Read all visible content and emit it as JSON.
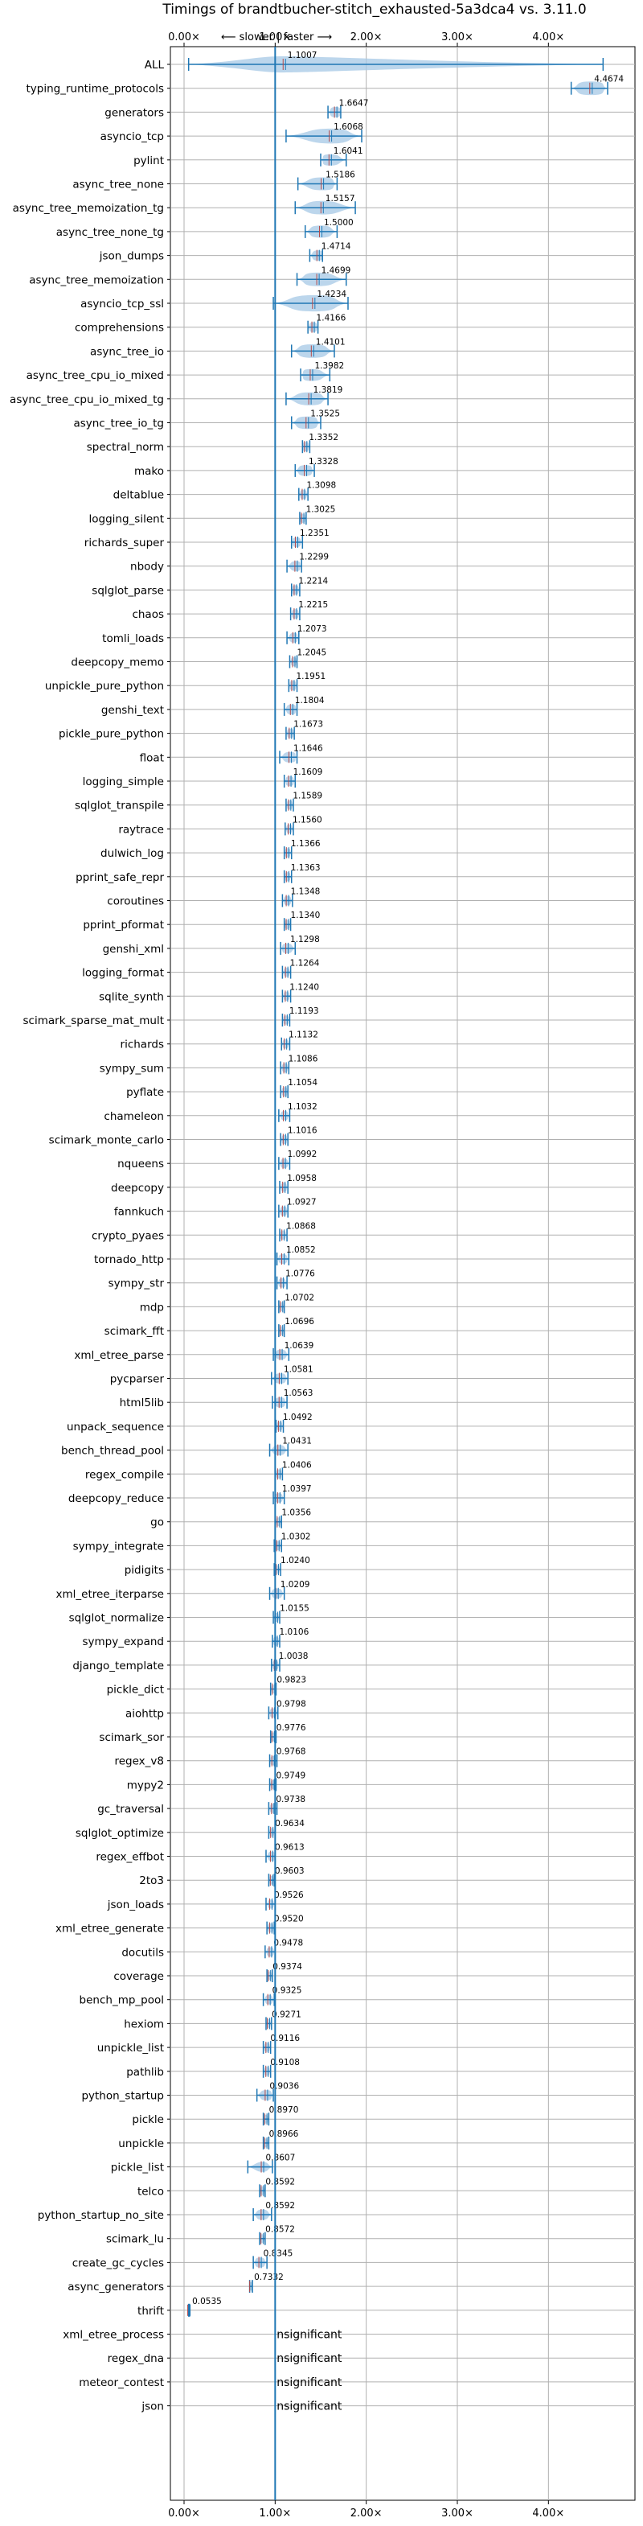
{
  "chart_data": {
    "type": "violin",
    "title": "Timings of brandtbucher-stitch_exhausted-5a3dca4 vs. 3.11.0",
    "subtitle": "⟵ slower | faster ⟶",
    "xlabel": "",
    "ylabel": "",
    "xlim": [
      -0.15,
      4.95
    ],
    "x_ticks": [
      0,
      1,
      2,
      3,
      4
    ],
    "x_tick_labels": [
      "0.00×",
      "1.00×",
      "2.00×",
      "3.00×",
      "4.00×"
    ],
    "reference_line": 1.0,
    "grid": true,
    "colors": {
      "violin": "#a6c8e6",
      "whisker": "#1f77b4",
      "median": "#1f77b4",
      "mean": "#b34a4a",
      "grid": "#b0b0b0"
    },
    "insignificant_label": "insignificant",
    "benchmarks": [
      {
        "name": "ALL",
        "value": 1.1007,
        "label": "1.1007",
        "lo": 0.05,
        "hi": 4.6,
        "spread": 0.3
      },
      {
        "name": "typing_runtime_protocols",
        "value": 4.4674,
        "label": "4.4674",
        "lo": 4.25,
        "hi": 4.65,
        "spread": 0.2
      },
      {
        "name": "generators",
        "value": 1.6647,
        "label": "1.6647",
        "lo": 1.58,
        "hi": 1.72,
        "spread": 0.08
      },
      {
        "name": "asyncio_tcp",
        "value": 1.6068,
        "label": "1.6068",
        "lo": 1.12,
        "hi": 1.95,
        "spread": 0.25
      },
      {
        "name": "pylint",
        "value": 1.6041,
        "label": "1.6041",
        "lo": 1.5,
        "hi": 1.78,
        "spread": 0.12
      },
      {
        "name": "async_tree_none",
        "value": 1.5186,
        "label": "1.5186",
        "lo": 1.25,
        "hi": 1.68,
        "spread": 0.18
      },
      {
        "name": "async_tree_memoization_tg",
        "value": 1.5157,
        "label": "1.5157",
        "lo": 1.22,
        "hi": 1.88,
        "spread": 0.2
      },
      {
        "name": "async_tree_none_tg",
        "value": 1.5,
        "label": "1.5000",
        "lo": 1.33,
        "hi": 1.68,
        "spread": 0.15
      },
      {
        "name": "json_dumps",
        "value": 1.4714,
        "label": "1.4714",
        "lo": 1.38,
        "hi": 1.52,
        "spread": 0.08
      },
      {
        "name": "async_tree_memoization",
        "value": 1.4699,
        "label": "1.4699",
        "lo": 1.24,
        "hi": 1.78,
        "spread": 0.2
      },
      {
        "name": "asyncio_tcp_ssl",
        "value": 1.4234,
        "label": "1.4234",
        "lo": 0.98,
        "hi": 1.8,
        "spread": 0.3
      },
      {
        "name": "comprehensions",
        "value": 1.4166,
        "label": "1.4166",
        "lo": 1.36,
        "hi": 1.47,
        "spread": 0.06
      },
      {
        "name": "async_tree_io",
        "value": 1.4101,
        "label": "1.4101",
        "lo": 1.18,
        "hi": 1.65,
        "spread": 0.2
      },
      {
        "name": "async_tree_cpu_io_mixed",
        "value": 1.3982,
        "label": "1.3982",
        "lo": 1.28,
        "hi": 1.6,
        "spread": 0.14
      },
      {
        "name": "async_tree_cpu_io_mixed_tg",
        "value": 1.3819,
        "label": "1.3819",
        "lo": 1.12,
        "hi": 1.58,
        "spread": 0.18
      },
      {
        "name": "async_tree_io_tg",
        "value": 1.3525,
        "label": "1.3525",
        "lo": 1.18,
        "hi": 1.5,
        "spread": 0.16
      },
      {
        "name": "spectral_norm",
        "value": 1.3352,
        "label": "1.3352",
        "lo": 1.3,
        "hi": 1.38,
        "spread": 0.05
      },
      {
        "name": "mako",
        "value": 1.3328,
        "label": "1.3328",
        "lo": 1.22,
        "hi": 1.43,
        "spread": 0.1
      },
      {
        "name": "deltablue",
        "value": 1.3098,
        "label": "1.3098",
        "lo": 1.26,
        "hi": 1.36,
        "spread": 0.05
      },
      {
        "name": "logging_silent",
        "value": 1.3025,
        "label": "1.3025",
        "lo": 1.27,
        "hi": 1.34,
        "spread": 0.04
      },
      {
        "name": "richards_super",
        "value": 1.2351,
        "label": "1.2351",
        "lo": 1.18,
        "hi": 1.3,
        "spread": 0.06
      },
      {
        "name": "nbody",
        "value": 1.2299,
        "label": "1.2299",
        "lo": 1.13,
        "hi": 1.29,
        "spread": 0.07
      },
      {
        "name": "sqlglot_parse",
        "value": 1.2214,
        "label": "1.2214",
        "lo": 1.18,
        "hi": 1.27,
        "spread": 0.05
      },
      {
        "name": "chaos",
        "value": 1.2215,
        "label": "1.2215",
        "lo": 1.17,
        "hi": 1.27,
        "spread": 0.05
      },
      {
        "name": "tomli_loads",
        "value": 1.2073,
        "label": "1.2073",
        "lo": 1.13,
        "hi": 1.26,
        "spread": 0.06
      },
      {
        "name": "deepcopy_memo",
        "value": 1.2045,
        "label": "1.2045",
        "lo": 1.16,
        "hi": 1.24,
        "spread": 0.04
      },
      {
        "name": "unpickle_pure_python",
        "value": 1.1951,
        "label": "1.1951",
        "lo": 1.15,
        "hi": 1.24,
        "spread": 0.05
      },
      {
        "name": "genshi_text",
        "value": 1.1804,
        "label": "1.1804",
        "lo": 1.1,
        "hi": 1.24,
        "spread": 0.07
      },
      {
        "name": "pickle_pure_python",
        "value": 1.1673,
        "label": "1.1673",
        "lo": 1.12,
        "hi": 1.21,
        "spread": 0.05
      },
      {
        "name": "float",
        "value": 1.1646,
        "label": "1.1646",
        "lo": 1.05,
        "hi": 1.24,
        "spread": 0.09
      },
      {
        "name": "logging_simple",
        "value": 1.1609,
        "label": "1.1609",
        "lo": 1.1,
        "hi": 1.22,
        "spread": 0.06
      },
      {
        "name": "sqlglot_transpile",
        "value": 1.1589,
        "label": "1.1589",
        "lo": 1.12,
        "hi": 1.2,
        "spread": 0.04
      },
      {
        "name": "raytrace",
        "value": 1.156,
        "label": "1.1560",
        "lo": 1.11,
        "hi": 1.2,
        "spread": 0.04
      },
      {
        "name": "dulwich_log",
        "value": 1.1366,
        "label": "1.1366",
        "lo": 1.1,
        "hi": 1.18,
        "spread": 0.04
      },
      {
        "name": "pprint_safe_repr",
        "value": 1.1363,
        "label": "1.1363",
        "lo": 1.1,
        "hi": 1.18,
        "spread": 0.04
      },
      {
        "name": "coroutines",
        "value": 1.1348,
        "label": "1.1348",
        "lo": 1.08,
        "hi": 1.19,
        "spread": 0.05
      },
      {
        "name": "pprint_pformat",
        "value": 1.134,
        "label": "1.1340",
        "lo": 1.1,
        "hi": 1.17,
        "spread": 0.04
      },
      {
        "name": "genshi_xml",
        "value": 1.1298,
        "label": "1.1298",
        "lo": 1.06,
        "hi": 1.22,
        "spread": 0.07
      },
      {
        "name": "logging_format",
        "value": 1.1264,
        "label": "1.1264",
        "lo": 1.08,
        "hi": 1.17,
        "spread": 0.04
      },
      {
        "name": "sqlite_synth",
        "value": 1.124,
        "label": "1.1240",
        "lo": 1.08,
        "hi": 1.17,
        "spread": 0.04
      },
      {
        "name": "scimark_sparse_mat_mult",
        "value": 1.1193,
        "label": "1.1193",
        "lo": 1.08,
        "hi": 1.16,
        "spread": 0.04
      },
      {
        "name": "richards",
        "value": 1.1132,
        "label": "1.1132",
        "lo": 1.07,
        "hi": 1.16,
        "spread": 0.04
      },
      {
        "name": "sympy_sum",
        "value": 1.1086,
        "label": "1.1086",
        "lo": 1.06,
        "hi": 1.15,
        "spread": 0.04
      },
      {
        "name": "pyflate",
        "value": 1.1054,
        "label": "1.1054",
        "lo": 1.06,
        "hi": 1.14,
        "spread": 0.04
      },
      {
        "name": "chameleon",
        "value": 1.1032,
        "label": "1.1032",
        "lo": 1.04,
        "hi": 1.16,
        "spread": 0.05
      },
      {
        "name": "scimark_monte_carlo",
        "value": 1.1016,
        "label": "1.1016",
        "lo": 1.06,
        "hi": 1.14,
        "spread": 0.04
      },
      {
        "name": "nqueens",
        "value": 1.0992,
        "label": "1.0992",
        "lo": 1.04,
        "hi": 1.16,
        "spread": 0.05
      },
      {
        "name": "deepcopy",
        "value": 1.0958,
        "label": "1.0958",
        "lo": 1.05,
        "hi": 1.14,
        "spread": 0.04
      },
      {
        "name": "fannkuch",
        "value": 1.0927,
        "label": "1.0927",
        "lo": 1.04,
        "hi": 1.14,
        "spread": 0.05
      },
      {
        "name": "crypto_pyaes",
        "value": 1.0868,
        "label": "1.0868",
        "lo": 1.05,
        "hi": 1.13,
        "spread": 0.04
      },
      {
        "name": "tornado_http",
        "value": 1.0852,
        "label": "1.0852",
        "lo": 1.02,
        "hi": 1.15,
        "spread": 0.06
      },
      {
        "name": "sympy_str",
        "value": 1.0776,
        "label": "1.0776",
        "lo": 1.02,
        "hi": 1.13,
        "spread": 0.05
      },
      {
        "name": "mdp",
        "value": 1.0702,
        "label": "1.0702",
        "lo": 1.04,
        "hi": 1.1,
        "spread": 0.03
      },
      {
        "name": "scimark_fft",
        "value": 1.0696,
        "label": "1.0696",
        "lo": 1.04,
        "hi": 1.1,
        "spread": 0.03
      },
      {
        "name": "xml_etree_parse",
        "value": 1.0639,
        "label": "1.0639",
        "lo": 0.98,
        "hi": 1.15,
        "spread": 0.07
      },
      {
        "name": "pycparser",
        "value": 1.0581,
        "label": "1.0581",
        "lo": 0.96,
        "hi": 1.14,
        "spread": 0.08
      },
      {
        "name": "html5lib",
        "value": 1.0563,
        "label": "1.0563",
        "lo": 0.97,
        "hi": 1.13,
        "spread": 0.07
      },
      {
        "name": "unpack_sequence",
        "value": 1.0492,
        "label": "1.0492",
        "lo": 1.01,
        "hi": 1.09,
        "spread": 0.04
      },
      {
        "name": "bench_thread_pool",
        "value": 1.0431,
        "label": "1.0431",
        "lo": 0.94,
        "hi": 1.14,
        "spread": 0.08
      },
      {
        "name": "regex_compile",
        "value": 1.0406,
        "label": "1.0406",
        "lo": 1.0,
        "hi": 1.08,
        "spread": 0.04
      },
      {
        "name": "deepcopy_reduce",
        "value": 1.0397,
        "label": "1.0397",
        "lo": 0.98,
        "hi": 1.1,
        "spread": 0.05
      },
      {
        "name": "go",
        "value": 1.0356,
        "label": "1.0356",
        "lo": 1.0,
        "hi": 1.07,
        "spread": 0.03
      },
      {
        "name": "sympy_integrate",
        "value": 1.0302,
        "label": "1.0302",
        "lo": 0.99,
        "hi": 1.07,
        "spread": 0.04
      },
      {
        "name": "pidigits",
        "value": 1.024,
        "label": "1.0240",
        "lo": 0.99,
        "hi": 1.06,
        "spread": 0.03
      },
      {
        "name": "xml_etree_iterparse",
        "value": 1.0209,
        "label": "1.0209",
        "lo": 0.94,
        "hi": 1.1,
        "spread": 0.07
      },
      {
        "name": "sqlglot_normalize",
        "value": 1.0155,
        "label": "1.0155",
        "lo": 0.98,
        "hi": 1.05,
        "spread": 0.03
      },
      {
        "name": "sympy_expand",
        "value": 1.0106,
        "label": "1.0106",
        "lo": 0.97,
        "hi": 1.05,
        "spread": 0.04
      },
      {
        "name": "django_template",
        "value": 1.0038,
        "label": "1.0038",
        "lo": 0.96,
        "hi": 1.05,
        "spread": 0.04
      },
      {
        "name": "pickle_dict",
        "value": 0.9823,
        "label": "0.9823",
        "lo": 0.95,
        "hi": 1.01,
        "spread": 0.03
      },
      {
        "name": "aiohttp",
        "value": 0.9798,
        "label": "0.9798",
        "lo": 0.93,
        "hi": 1.03,
        "spread": 0.05
      },
      {
        "name": "scimark_sor",
        "value": 0.9776,
        "label": "0.9776",
        "lo": 0.95,
        "hi": 1.01,
        "spread": 0.03
      },
      {
        "name": "regex_v8",
        "value": 0.9768,
        "label": "0.9768",
        "lo": 0.94,
        "hi": 1.02,
        "spread": 0.04
      },
      {
        "name": "mypy2",
        "value": 0.9749,
        "label": "0.9749",
        "lo": 0.94,
        "hi": 1.01,
        "spread": 0.03
      },
      {
        "name": "gc_traversal",
        "value": 0.9738,
        "label": "0.9738",
        "lo": 0.93,
        "hi": 1.02,
        "spread": 0.04
      },
      {
        "name": "sqlglot_optimize",
        "value": 0.9634,
        "label": "0.9634",
        "lo": 0.93,
        "hi": 1.0,
        "spread": 0.03
      },
      {
        "name": "regex_effbot",
        "value": 0.9613,
        "label": "0.9613",
        "lo": 0.9,
        "hi": 1.0,
        "spread": 0.05
      },
      {
        "name": "2to3",
        "value": 0.9603,
        "label": "0.9603",
        "lo": 0.93,
        "hi": 0.99,
        "spread": 0.03
      },
      {
        "name": "json_loads",
        "value": 0.9526,
        "label": "0.9526",
        "lo": 0.9,
        "hi": 1.0,
        "spread": 0.04
      },
      {
        "name": "xml_etree_generate",
        "value": 0.952,
        "label": "0.9520",
        "lo": 0.91,
        "hi": 0.99,
        "spread": 0.04
      },
      {
        "name": "docutils",
        "value": 0.9478,
        "label": "0.9478",
        "lo": 0.89,
        "hi": 1.0,
        "spread": 0.05
      },
      {
        "name": "coverage",
        "value": 0.9374,
        "label": "0.9374",
        "lo": 0.91,
        "hi": 0.97,
        "spread": 0.03
      },
      {
        "name": "bench_mp_pool",
        "value": 0.9325,
        "label": "0.9325",
        "lo": 0.87,
        "hi": 0.99,
        "spread": 0.05
      },
      {
        "name": "hexiom",
        "value": 0.9271,
        "label": "0.9271",
        "lo": 0.9,
        "hi": 0.96,
        "spread": 0.03
      },
      {
        "name": "unpickle_list",
        "value": 0.9116,
        "label": "0.9116",
        "lo": 0.87,
        "hi": 0.95,
        "spread": 0.04
      },
      {
        "name": "pathlib",
        "value": 0.9108,
        "label": "0.9108",
        "lo": 0.87,
        "hi": 0.95,
        "spread": 0.04
      },
      {
        "name": "python_startup",
        "value": 0.9036,
        "label": "0.9036",
        "lo": 0.8,
        "hi": 0.98,
        "spread": 0.08
      },
      {
        "name": "pickle",
        "value": 0.897,
        "label": "0.8970",
        "lo": 0.87,
        "hi": 0.93,
        "spread": 0.03
      },
      {
        "name": "unpickle",
        "value": 0.8966,
        "label": "0.8966",
        "lo": 0.87,
        "hi": 0.93,
        "spread": 0.03
      },
      {
        "name": "pickle_list",
        "value": 0.8607,
        "label": "0.8607",
        "lo": 0.7,
        "hi": 0.97,
        "spread": 0.07
      },
      {
        "name": "telco",
        "value": 0.8592,
        "label": "0.8592",
        "lo": 0.83,
        "hi": 0.89,
        "spread": 0.03
      },
      {
        "name": "python_startup_no_site",
        "value": 0.8592,
        "label": "0.8592",
        "lo": 0.76,
        "hi": 0.96,
        "spread": 0.08
      },
      {
        "name": "scimark_lu",
        "value": 0.8572,
        "label": "0.8572",
        "lo": 0.83,
        "hi": 0.89,
        "spread": 0.03
      },
      {
        "name": "create_gc_cycles",
        "value": 0.8345,
        "label": "0.8345",
        "lo": 0.76,
        "hi": 0.91,
        "spread": 0.07
      },
      {
        "name": "async_generators",
        "value": 0.7332,
        "label": "0.7332",
        "lo": 0.72,
        "hi": 0.75,
        "spread": 0.02
      },
      {
        "name": "thrift",
        "value": 0.0535,
        "label": "0.0535",
        "lo": 0.05,
        "hi": 0.06,
        "spread": 0.01
      },
      {
        "name": "xml_etree_process",
        "insignificant": true
      },
      {
        "name": "regex_dna",
        "insignificant": true
      },
      {
        "name": "meteor_contest",
        "insignificant": true
      },
      {
        "name": "json",
        "insignificant": true
      }
    ]
  }
}
